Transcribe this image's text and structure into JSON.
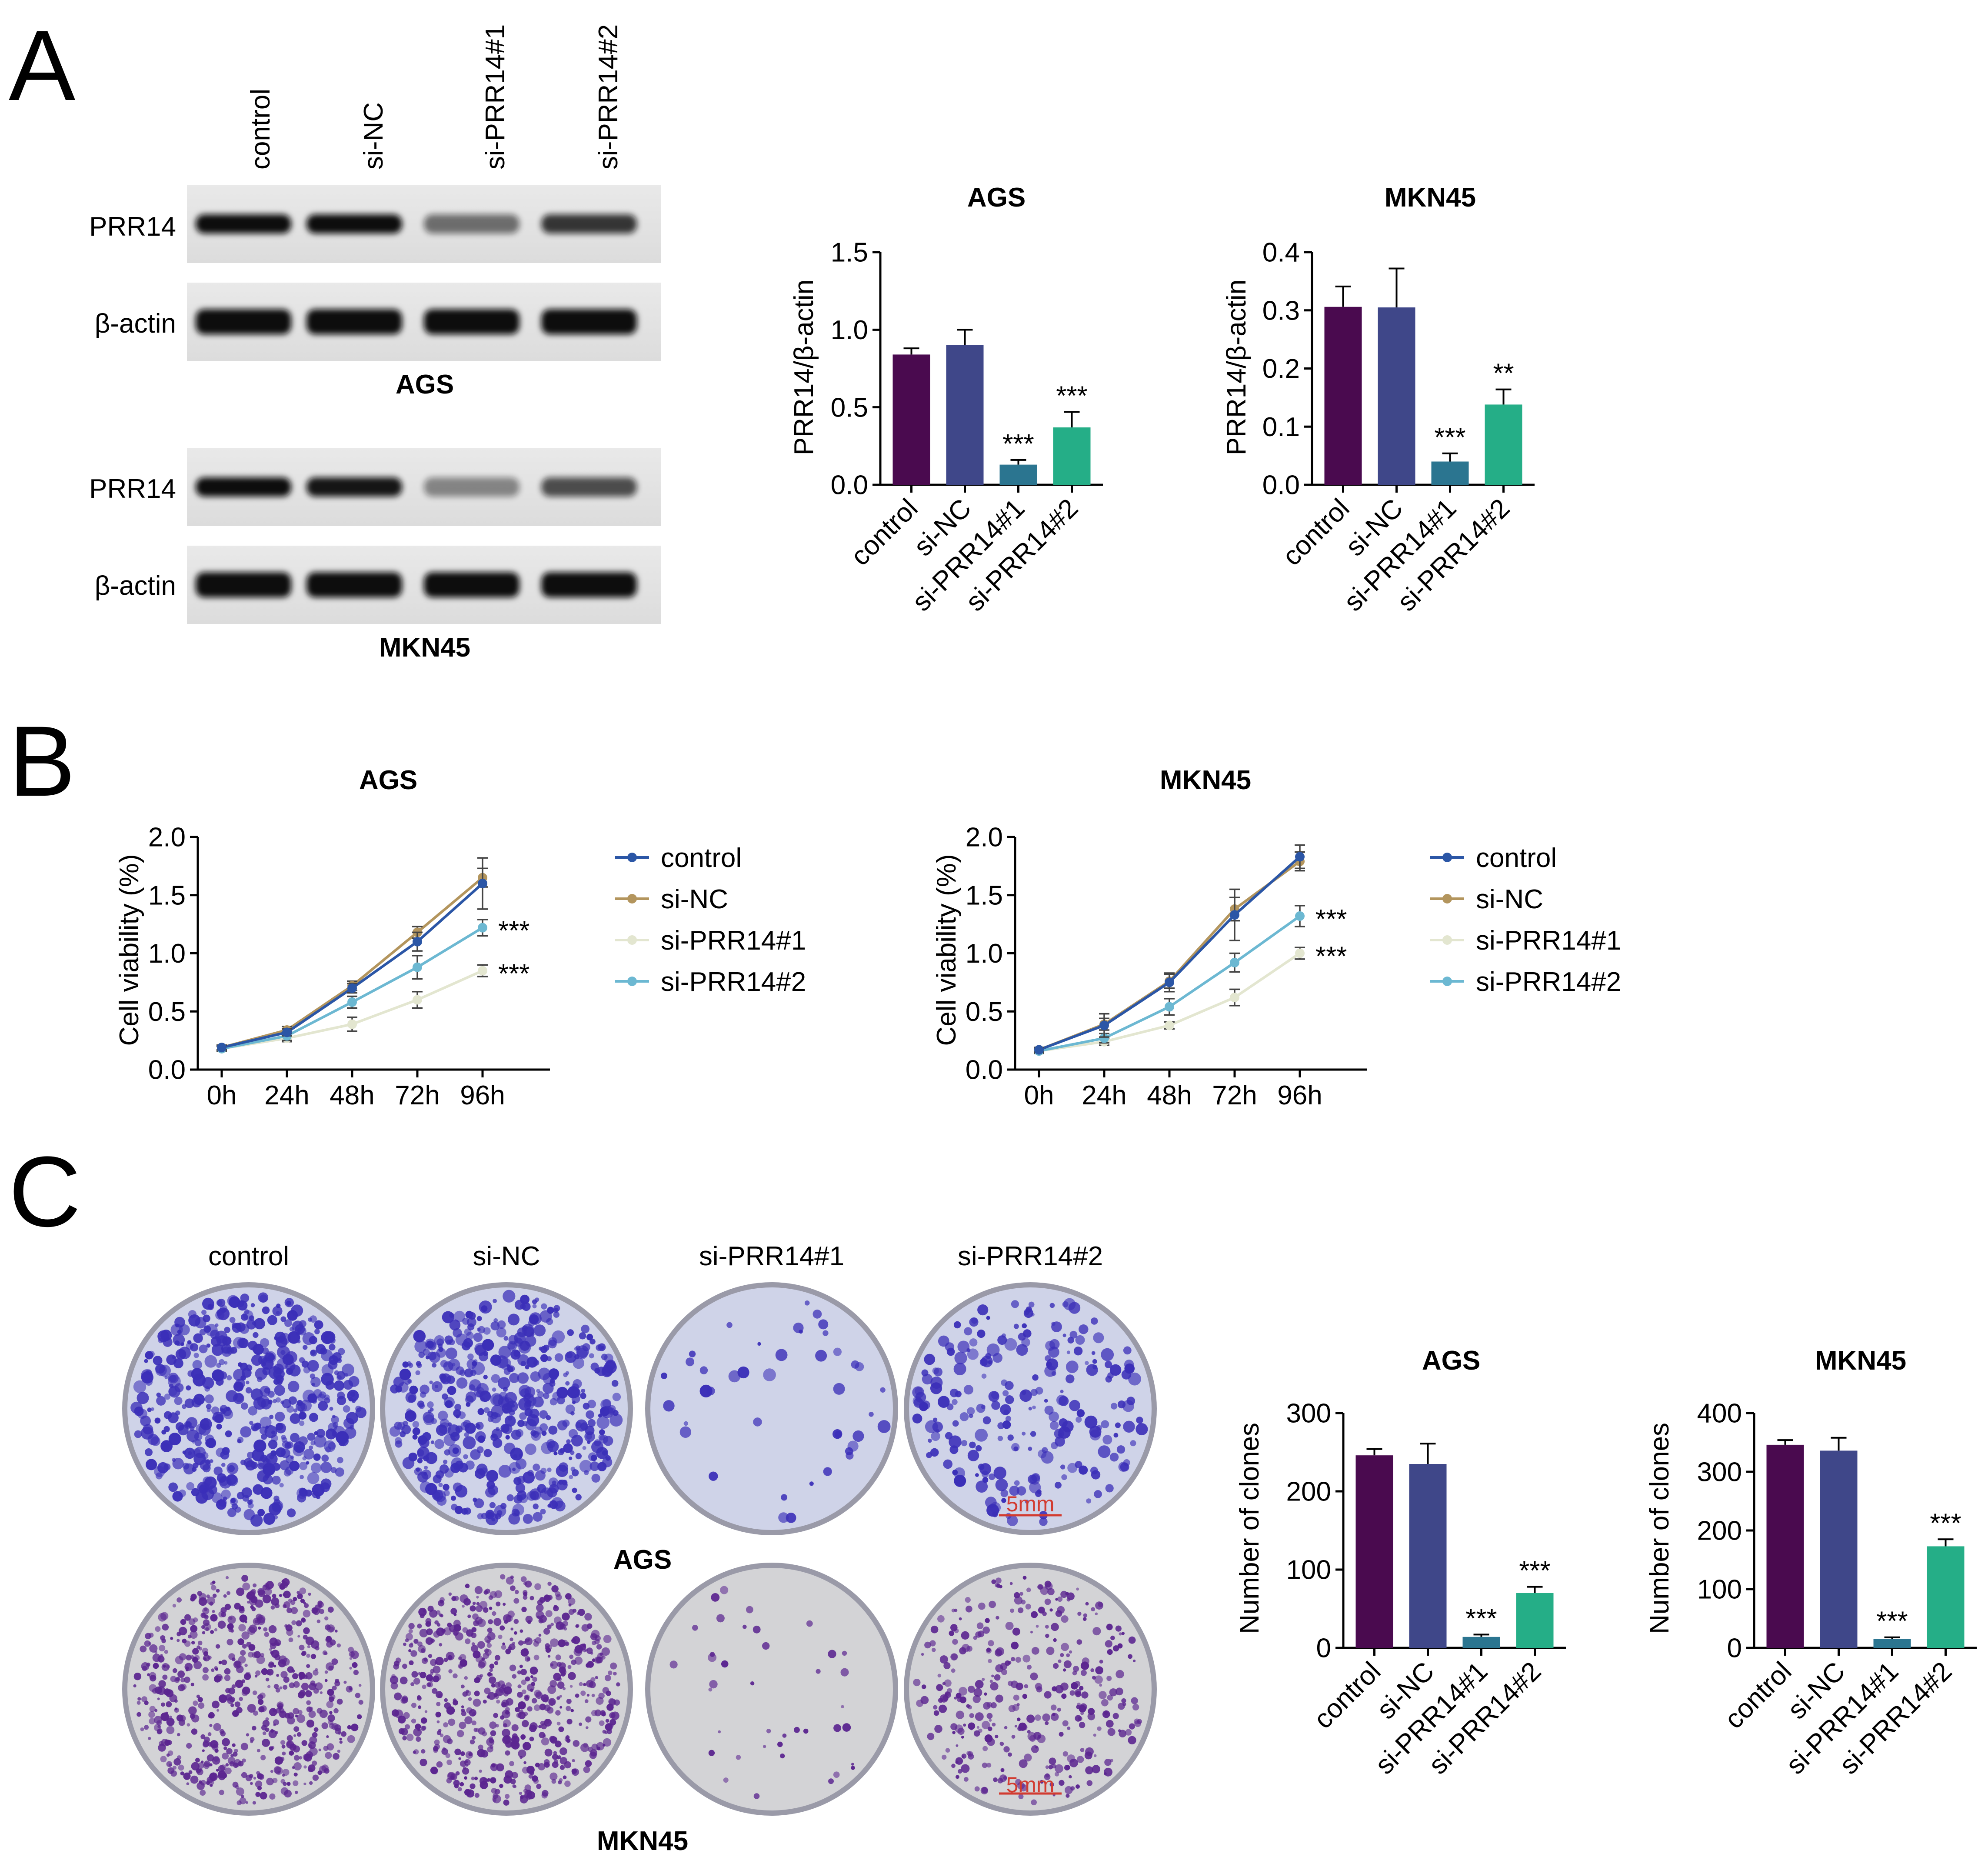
{
  "panels": {
    "A": "A",
    "B": "B",
    "C": "C"
  },
  "groups": [
    "control",
    "si-NC",
    "si-PRR14#1",
    "si-PRR14#2"
  ],
  "colors": {
    "bar": [
      "#4a0a4f",
      "#3f4789",
      "#2b7590",
      "#25ae87"
    ],
    "line": [
      "#2b56a6",
      "#b3955d",
      "#e3e6d0",
      "#6cb8d2"
    ],
    "scale_bar": "#d23b30"
  },
  "blots": {
    "cells": [
      "AGS",
      "MKN45"
    ],
    "bands": [
      "PRR14",
      "β-actin"
    ],
    "intensity": [
      {
        "PRR14": [
          1.0,
          1.0,
          0.4,
          0.75
        ],
        "β-actin": [
          1.0,
          1.0,
          1.0,
          1.0
        ]
      },
      {
        "PRR14": [
          1.0,
          0.95,
          0.25,
          0.6
        ],
        "β-actin": [
          1.0,
          1.0,
          1.0,
          1.0
        ]
      }
    ]
  },
  "colonies": {
    "rows": [
      "AGS",
      "MKN45"
    ],
    "scale_bar_label": "5mm",
    "density": [
      [
        1.0,
        1.0,
        0.08,
        0.45
      ],
      [
        1.0,
        1.0,
        0.06,
        0.55
      ]
    ]
  },
  "chart_data": [
    {
      "type": "bar",
      "panel": "A",
      "title": "AGS",
      "ylabel": "PRR14/β-actin",
      "categories": [
        "control",
        "si-NC",
        "si-PRR14#1",
        "si-PRR14#2"
      ],
      "values": [
        0.84,
        0.9,
        0.13,
        0.37
      ],
      "errors": [
        0.04,
        0.1,
        0.03,
        0.1
      ],
      "significance": [
        "",
        "",
        "***",
        "***"
      ],
      "ylim": [
        0,
        1.5
      ],
      "yticks": [
        "0.0",
        "0.5",
        "1.0",
        "1.5"
      ]
    },
    {
      "type": "bar",
      "panel": "A",
      "title": "MKN45",
      "ylabel": "PRR14/β-actin",
      "categories": [
        "control",
        "si-NC",
        "si-PRR14#1",
        "si-PRR14#2"
      ],
      "values": [
        0.306,
        0.305,
        0.04,
        0.138
      ],
      "errors": [
        0.035,
        0.067,
        0.014,
        0.026
      ],
      "significance": [
        "",
        "",
        "***",
        "**"
      ],
      "ylim": [
        0,
        0.4
      ],
      "yticks": [
        "0.0",
        "0.1",
        "0.2",
        "0.3",
        "0.4"
      ]
    },
    {
      "type": "line",
      "panel": "B",
      "title": "AGS",
      "ylabel": "Cell viability (%)",
      "x": [
        "0h",
        "24h",
        "48h",
        "72h",
        "96h"
      ],
      "series": [
        {
          "name": "control",
          "values": [
            0.19,
            0.32,
            0.7,
            1.1,
            1.6
          ],
          "errors": [
            0.02,
            0.03,
            0.04,
            0.08,
            0.22
          ]
        },
        {
          "name": "si-NC",
          "values": [
            0.19,
            0.34,
            0.72,
            1.18,
            1.65
          ],
          "errors": [
            0.02,
            0.03,
            0.04,
            0.05,
            0.08
          ]
        },
        {
          "name": "si-PRR14#1",
          "values": [
            0.18,
            0.27,
            0.39,
            0.6,
            0.85
          ],
          "errors": [
            0.02,
            0.03,
            0.06,
            0.07,
            0.05
          ]
        },
        {
          "name": "si-PRR14#2",
          "values": [
            0.18,
            0.29,
            0.58,
            0.88,
            1.22
          ],
          "errors": [
            0.02,
            0.04,
            0.05,
            0.1,
            0.07
          ]
        }
      ],
      "annotations": [
        {
          "series": "si-PRR14#2",
          "text": "***"
        },
        {
          "series": "si-PRR14#1",
          "text": "***"
        }
      ],
      "ylim": [
        0,
        2.0
      ],
      "yticks": [
        "0.0",
        "0.5",
        "1.0",
        "1.5",
        "2.0"
      ]
    },
    {
      "type": "line",
      "panel": "B",
      "title": "MKN45",
      "ylabel": "Cell viability (%)",
      "x": [
        "0h",
        "24h",
        "48h",
        "72h",
        "96h"
      ],
      "series": [
        {
          "name": "control",
          "values": [
            0.17,
            0.38,
            0.75,
            1.33,
            1.83
          ],
          "errors": [
            0.02,
            0.1,
            0.08,
            0.22,
            0.1
          ]
        },
        {
          "name": "si-NC",
          "values": [
            0.17,
            0.39,
            0.76,
            1.38,
            1.79
          ],
          "errors": [
            0.02,
            0.05,
            0.06,
            0.1,
            0.08
          ]
        },
        {
          "name": "si-PRR14#1",
          "values": [
            0.16,
            0.24,
            0.38,
            0.62,
            1.0
          ],
          "errors": [
            0.02,
            0.03,
            0.03,
            0.07,
            0.05
          ]
        },
        {
          "name": "si-PRR14#2",
          "values": [
            0.16,
            0.27,
            0.54,
            0.92,
            1.32
          ],
          "errors": [
            0.02,
            0.04,
            0.07,
            0.08,
            0.09
          ]
        }
      ],
      "annotations": [
        {
          "series": "si-PRR14#2",
          "text": "***"
        },
        {
          "series": "si-PRR14#1",
          "text": "***"
        }
      ],
      "ylim": [
        0,
        2.0
      ],
      "yticks": [
        "0.0",
        "0.5",
        "1.0",
        "1.5",
        "2.0"
      ]
    },
    {
      "type": "bar",
      "panel": "C",
      "title": "AGS",
      "ylabel": "Number of clones",
      "categories": [
        "control",
        "si-NC",
        "si-PRR14#1",
        "si-PRR14#2"
      ],
      "values": [
        246,
        235,
        14,
        70
      ],
      "errors": [
        8,
        26,
        3,
        8
      ],
      "significance": [
        "",
        "",
        "***",
        "***"
      ],
      "ylim": [
        0,
        300
      ],
      "yticks": [
        "0",
        "100",
        "200",
        "300"
      ]
    },
    {
      "type": "bar",
      "panel": "C",
      "title": "MKN45",
      "ylabel": "Number of clones",
      "categories": [
        "control",
        "si-NC",
        "si-PRR14#1",
        "si-PRR14#2"
      ],
      "values": [
        346,
        336,
        15,
        173
      ],
      "errors": [
        8,
        22,
        3,
        12
      ],
      "significance": [
        "",
        "",
        "***",
        "***"
      ],
      "ylim": [
        0,
        400
      ],
      "yticks": [
        "0",
        "100",
        "200",
        "300",
        "400"
      ]
    }
  ]
}
